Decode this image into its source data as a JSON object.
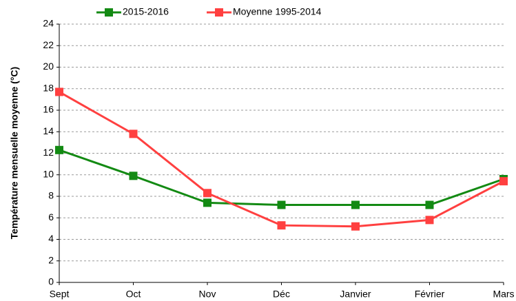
{
  "chart_data": {
    "type": "line",
    "y_label": "Température mensuelle moyenne (°C)",
    "categories": [
      "Sept",
      "Oct",
      "Nov",
      "Déc",
      "Janvier",
      "Février",
      "Mars"
    ],
    "series": [
      {
        "name": "2015-2016",
        "color": "#138a13",
        "values": [
          12.3,
          9.9,
          7.4,
          7.2,
          7.2,
          7.2,
          9.6
        ]
      },
      {
        "name": "Moyenne 1995-2014",
        "color": "#ff4040",
        "values": [
          17.7,
          13.8,
          8.3,
          5.3,
          5.2,
          5.8,
          9.4
        ]
      }
    ],
    "ylim": [
      0,
      24
    ],
    "yticks": [
      0,
      2,
      4,
      6,
      8,
      10,
      12,
      14,
      16,
      18,
      20,
      22,
      24
    ],
    "grid": true
  }
}
